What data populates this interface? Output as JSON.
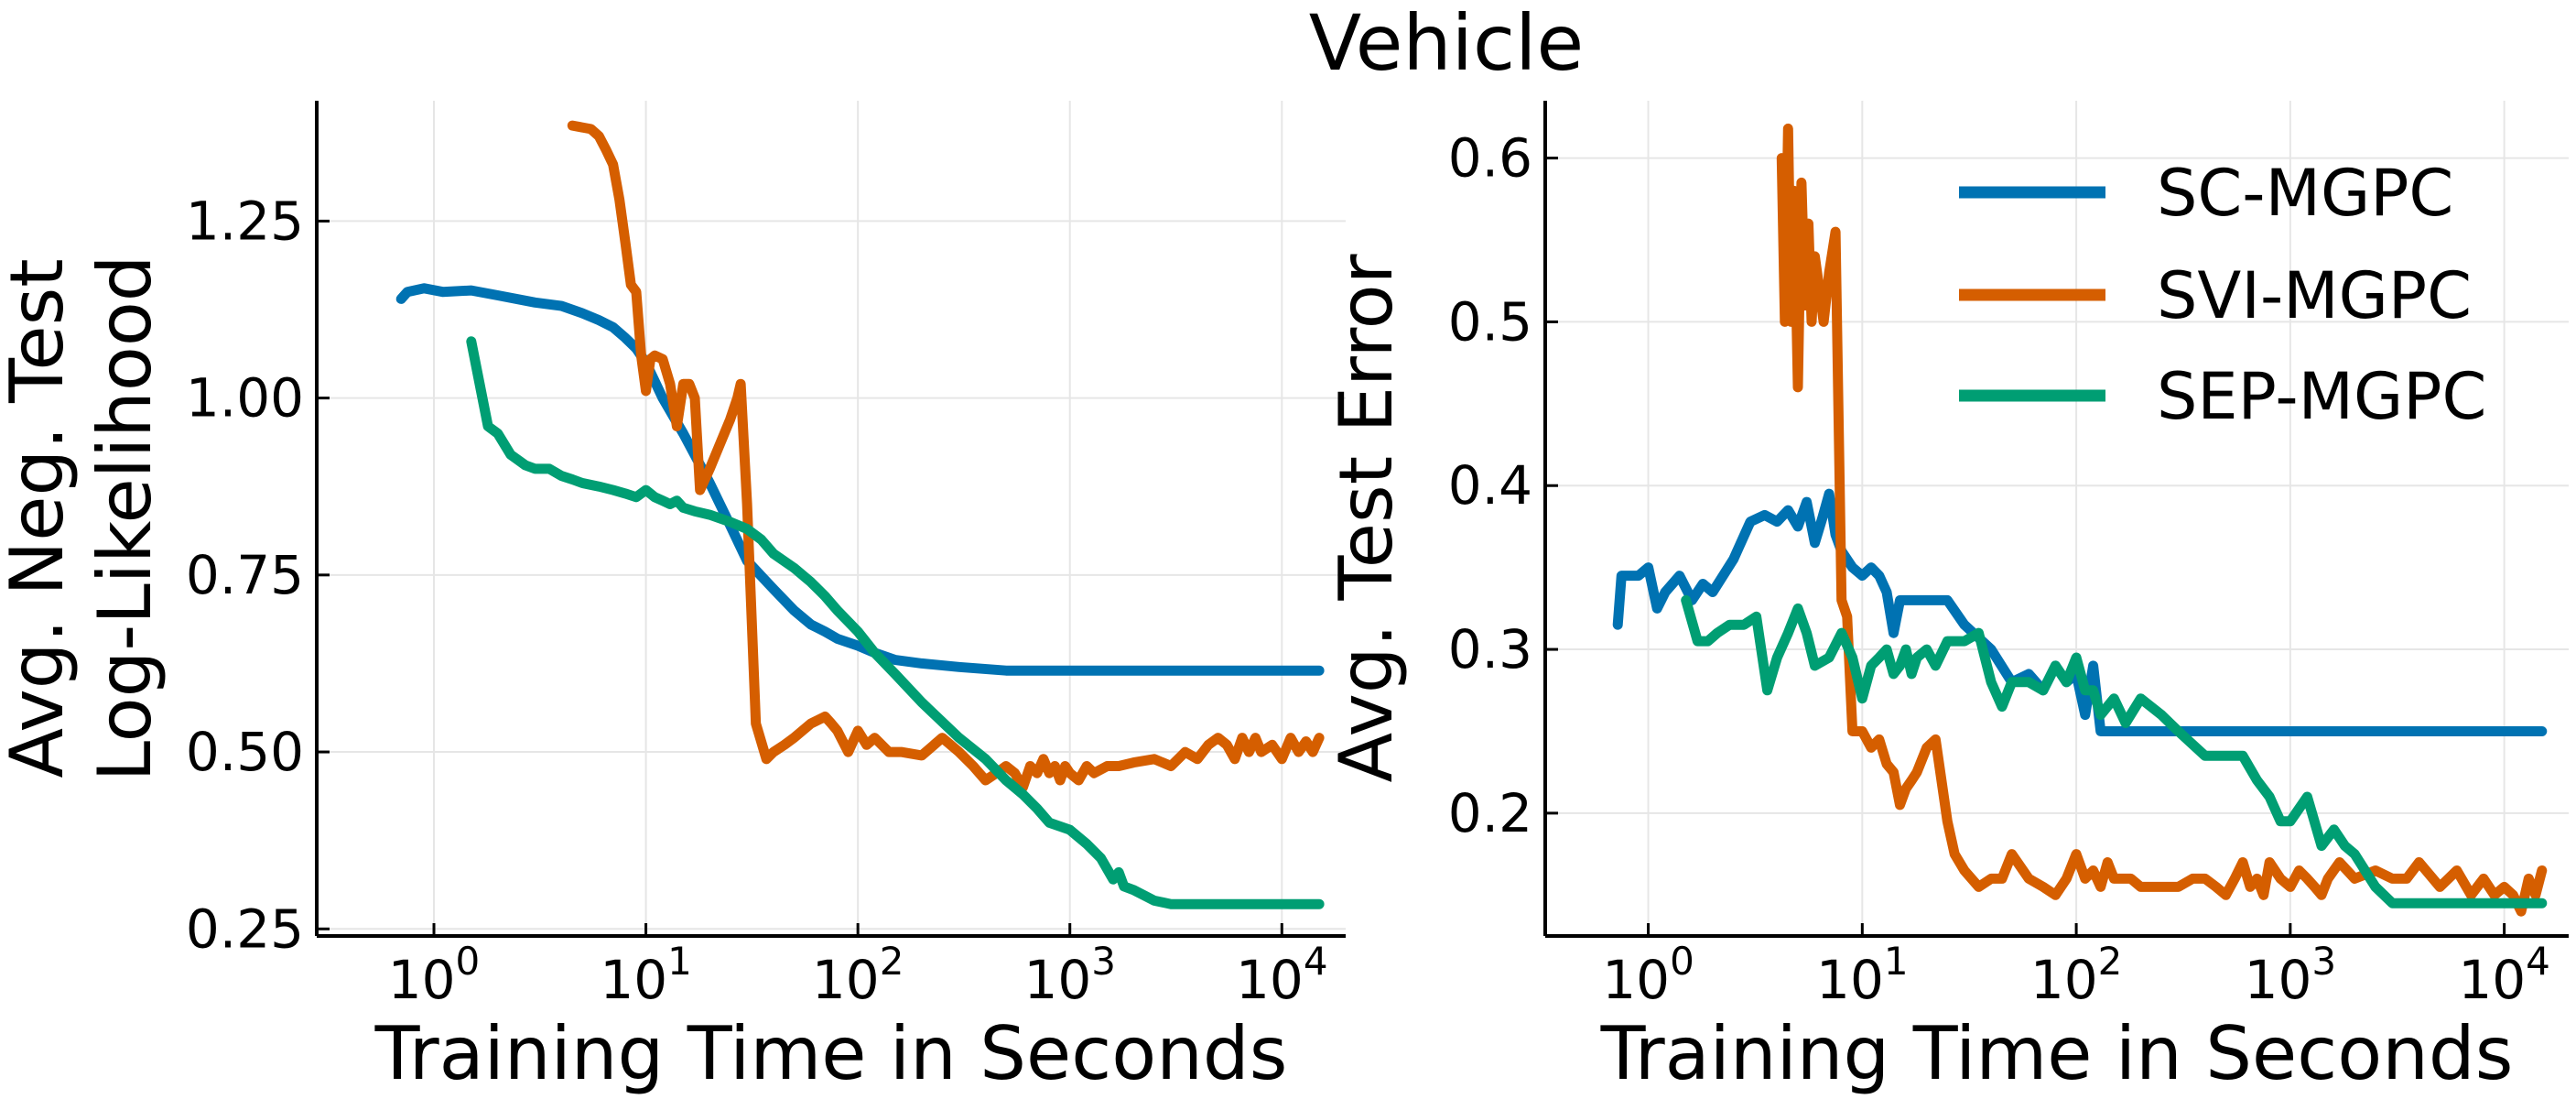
{
  "figure": {
    "title": "Vehicle"
  },
  "legend": {
    "entries": [
      {
        "name": "SC-MGPC",
        "color": "#0072b2"
      },
      {
        "name": "SVI-MGPC",
        "color": "#d55e00"
      },
      {
        "name": "SEP-MGPC",
        "color": "#009e73"
      }
    ]
  },
  "chart_data": [
    {
      "type": "line",
      "title": "",
      "xlabel": "Training Time in Seconds",
      "ylabel_lines": [
        "Avg. Neg. Test",
        "Log-Likelihood"
      ],
      "xscale": "log",
      "xlim": [
        0.28,
        20000
      ],
      "ylim": [
        0.24,
        1.42
      ],
      "xticks": [
        1,
        10,
        100,
        1000,
        10000
      ],
      "xtick_labels": [
        {
          "base": "10",
          "exp": "0"
        },
        {
          "base": "10",
          "exp": "1"
        },
        {
          "base": "10",
          "exp": "2"
        },
        {
          "base": "10",
          "exp": "3"
        },
        {
          "base": "10",
          "exp": "4"
        }
      ],
      "yticks": [
        0.25,
        0.5,
        0.75,
        1.0,
        1.25
      ],
      "ytick_labels": [
        "0.25",
        "0.50",
        "0.75",
        "1.00",
        "1.25"
      ],
      "grid": true,
      "series": [
        {
          "name": "SC-MGPC",
          "color": "#0072b2",
          "x": [
            0.7,
            0.75,
            0.9,
            1.1,
            1.5,
            2,
            3,
            4,
            5,
            6,
            7,
            8,
            9,
            10,
            12,
            15,
            20,
            25,
            30,
            40,
            50,
            60,
            70,
            80,
            100,
            120,
            150,
            200,
            300,
            500,
            1000,
            2000,
            5000,
            10000,
            15000
          ],
          "y": [
            1.14,
            1.15,
            1.155,
            1.15,
            1.152,
            1.145,
            1.135,
            1.13,
            1.12,
            1.11,
            1.1,
            1.085,
            1.07,
            1.05,
            1.0,
            0.95,
            0.88,
            0.82,
            0.77,
            0.73,
            0.7,
            0.68,
            0.67,
            0.66,
            0.65,
            0.64,
            0.63,
            0.625,
            0.62,
            0.615,
            0.615,
            0.615,
            0.615,
            0.615,
            0.615
          ]
        },
        {
          "name": "SVI-MGPC",
          "color": "#d55e00",
          "x": [
            4.5,
            5.5,
            6,
            6.5,
            7,
            7.5,
            8,
            8.5,
            9,
            9.5,
            10,
            10.5,
            11,
            12,
            13,
            14,
            15,
            16,
            17,
            18,
            20,
            22,
            25,
            27,
            28,
            30,
            33,
            37,
            40,
            45,
            50,
            60,
            70,
            75,
            80,
            90,
            100,
            110,
            120,
            140,
            160,
            200,
            250,
            300,
            350,
            400,
            450,
            500,
            550,
            600,
            650,
            700,
            750,
            800,
            850,
            900,
            950,
            1000,
            1100,
            1200,
            1300,
            1500,
            1700,
            2000,
            2500,
            3000,
            3500,
            4000,
            4500,
            5000,
            5500,
            6000,
            6500,
            7000,
            7500,
            8000,
            9000,
            10000,
            11000,
            12000,
            13000,
            14000,
            15000
          ],
          "y": [
            1.385,
            1.38,
            1.37,
            1.35,
            1.33,
            1.28,
            1.22,
            1.16,
            1.15,
            1.06,
            1.01,
            1.055,
            1.06,
            1.055,
            1.02,
            0.96,
            1.02,
            1.02,
            1.0,
            0.87,
            0.9,
            0.93,
            0.97,
            1.0,
            1.02,
            0.85,
            0.54,
            0.49,
            0.5,
            0.51,
            0.52,
            0.54,
            0.55,
            0.54,
            0.53,
            0.5,
            0.53,
            0.51,
            0.52,
            0.5,
            0.5,
            0.495,
            0.52,
            0.5,
            0.48,
            0.46,
            0.47,
            0.48,
            0.47,
            0.45,
            0.48,
            0.47,
            0.49,
            0.47,
            0.48,
            0.46,
            0.48,
            0.47,
            0.46,
            0.48,
            0.47,
            0.48,
            0.48,
            0.485,
            0.49,
            0.48,
            0.5,
            0.49,
            0.51,
            0.52,
            0.51,
            0.49,
            0.52,
            0.5,
            0.52,
            0.5,
            0.51,
            0.49,
            0.52,
            0.5,
            0.515,
            0.5,
            0.52
          ]
        },
        {
          "name": "SEP-MGPC",
          "color": "#009e73",
          "x": [
            1.5,
            1.8,
            2,
            2.3,
            2.7,
            3,
            3.5,
            4,
            4.5,
            5,
            6,
            7,
            8,
            9,
            10,
            11,
            12,
            13,
            14,
            15,
            17,
            20,
            25,
            30,
            35,
            40,
            50,
            60,
            70,
            80,
            100,
            120,
            150,
            200,
            300,
            400,
            500,
            600,
            700,
            800,
            1000,
            1200,
            1400,
            1600,
            1700,
            1800,
            2000,
            2500,
            3000,
            5000,
            10000,
            15000
          ],
          "y": [
            1.08,
            0.96,
            0.95,
            0.92,
            0.905,
            0.9,
            0.9,
            0.89,
            0.885,
            0.88,
            0.875,
            0.87,
            0.865,
            0.86,
            0.87,
            0.86,
            0.855,
            0.85,
            0.855,
            0.845,
            0.84,
            0.835,
            0.825,
            0.815,
            0.8,
            0.78,
            0.76,
            0.74,
            0.72,
            0.7,
            0.67,
            0.64,
            0.61,
            0.57,
            0.52,
            0.49,
            0.46,
            0.44,
            0.42,
            0.4,
            0.39,
            0.37,
            0.35,
            0.32,
            0.33,
            0.31,
            0.305,
            0.29,
            0.285,
            0.285,
            0.285,
            0.285
          ]
        }
      ]
    },
    {
      "type": "line",
      "title": "",
      "xlabel": "Training Time in Seconds",
      "ylabel_lines": [
        "Avg. Test Error"
      ],
      "xscale": "log",
      "xlim": [
        0.33,
        20000
      ],
      "ylim": [
        0.125,
        0.635
      ],
      "xticks": [
        1,
        10,
        100,
        1000,
        10000
      ],
      "xtick_labels": [
        {
          "base": "10",
          "exp": "0"
        },
        {
          "base": "10",
          "exp": "1"
        },
        {
          "base": "10",
          "exp": "2"
        },
        {
          "base": "10",
          "exp": "3"
        },
        {
          "base": "10",
          "exp": "4"
        }
      ],
      "yticks": [
        0.2,
        0.3,
        0.4,
        0.5,
        0.6
      ],
      "ytick_labels": [
        "0.2",
        "0.3",
        "0.4",
        "0.5",
        "0.6"
      ],
      "grid": true,
      "legend_position": "top-right",
      "series": [
        {
          "name": "SC-MGPC",
          "color": "#0072b2",
          "x": [
            0.72,
            0.75,
            0.9,
            1.0,
            1.1,
            1.2,
            1.4,
            1.6,
            1.8,
            2,
            2.5,
            3,
            3.5,
            4,
            4.5,
            5,
            5.5,
            6,
            6.5,
            7,
            7.5,
            8,
            9,
            10,
            11,
            12,
            13,
            14,
            15,
            17,
            20,
            25,
            30,
            40,
            50,
            60,
            70,
            80,
            90,
            100,
            110,
            120,
            130,
            150,
            200,
            300,
            500,
            1000,
            2000,
            5000,
            10000,
            15000
          ],
          "y": [
            0.315,
            0.345,
            0.345,
            0.35,
            0.325,
            0.335,
            0.345,
            0.33,
            0.34,
            0.335,
            0.355,
            0.378,
            0.382,
            0.378,
            0.385,
            0.375,
            0.39,
            0.365,
            0.38,
            0.395,
            0.37,
            0.36,
            0.35,
            0.345,
            0.35,
            0.345,
            0.335,
            0.31,
            0.33,
            0.33,
            0.33,
            0.33,
            0.315,
            0.3,
            0.28,
            0.285,
            0.275,
            0.29,
            0.28,
            0.285,
            0.26,
            0.29,
            0.25,
            0.25,
            0.25,
            0.25,
            0.25,
            0.25,
            0.25,
            0.25,
            0.25,
            0.25
          ]
        },
        {
          "name": "SVI-MGPC",
          "color": "#d55e00",
          "x": [
            4.2,
            4.35,
            4.5,
            4.65,
            4.8,
            5.0,
            5.2,
            5.4,
            5.6,
            5.8,
            6.0,
            6.3,
            6.6,
            7.0,
            7.5,
            8.0,
            8.5,
            9.0,
            9.5,
            10,
            11,
            12,
            13,
            14,
            15,
            16,
            17,
            18,
            20,
            22,
            25,
            27,
            30,
            35,
            40,
            45,
            50,
            60,
            70,
            80,
            90,
            100,
            110,
            120,
            130,
            140,
            150,
            180,
            200,
            250,
            300,
            350,
            400,
            450,
            500,
            550,
            600,
            650,
            700,
            750,
            800,
            900,
            1000,
            1100,
            1200,
            1300,
            1400,
            1500,
            1700,
            2000,
            2500,
            3000,
            3500,
            4000,
            5000,
            6000,
            7000,
            8000,
            9000,
            10000,
            11000,
            12000,
            13000,
            14000,
            15000
          ],
          "y": [
            0.6,
            0.5,
            0.618,
            0.5,
            0.58,
            0.46,
            0.585,
            0.51,
            0.56,
            0.5,
            0.54,
            0.52,
            0.5,
            0.53,
            0.555,
            0.33,
            0.32,
            0.25,
            0.25,
            0.25,
            0.24,
            0.245,
            0.23,
            0.225,
            0.205,
            0.215,
            0.22,
            0.225,
            0.24,
            0.245,
            0.195,
            0.175,
            0.165,
            0.155,
            0.16,
            0.16,
            0.175,
            0.16,
            0.155,
            0.15,
            0.16,
            0.175,
            0.16,
            0.165,
            0.155,
            0.17,
            0.16,
            0.16,
            0.155,
            0.155,
            0.155,
            0.16,
            0.16,
            0.155,
            0.15,
            0.16,
            0.17,
            0.155,
            0.16,
            0.15,
            0.17,
            0.16,
            0.155,
            0.165,
            0.16,
            0.155,
            0.15,
            0.16,
            0.17,
            0.16,
            0.165,
            0.16,
            0.16,
            0.17,
            0.155,
            0.165,
            0.15,
            0.16,
            0.15,
            0.155,
            0.15,
            0.14,
            0.16,
            0.15,
            0.165
          ]
        },
        {
          "name": "SEP-MGPC",
          "color": "#009e73",
          "x": [
            1.5,
            1.7,
            1.9,
            2.1,
            2.4,
            2.8,
            3.2,
            3.6,
            4.0,
            4.5,
            5.0,
            5.5,
            6.0,
            7.0,
            8.0,
            9.0,
            10,
            11,
            12,
            13,
            14,
            15,
            16,
            17,
            18,
            20,
            22,
            25,
            30,
            35,
            40,
            45,
            50,
            60,
            70,
            80,
            90,
            100,
            110,
            120,
            130,
            150,
            170,
            200,
            250,
            300,
            400,
            500,
            600,
            700,
            800,
            900,
            1000,
            1200,
            1400,
            1600,
            1800,
            2000,
            2500,
            3000,
            5000,
            10000,
            15000
          ],
          "y": [
            0.33,
            0.305,
            0.305,
            0.31,
            0.315,
            0.315,
            0.32,
            0.275,
            0.295,
            0.31,
            0.325,
            0.31,
            0.29,
            0.295,
            0.31,
            0.295,
            0.27,
            0.29,
            0.295,
            0.3,
            0.285,
            0.29,
            0.3,
            0.285,
            0.295,
            0.3,
            0.29,
            0.305,
            0.305,
            0.31,
            0.28,
            0.265,
            0.28,
            0.28,
            0.275,
            0.29,
            0.28,
            0.295,
            0.275,
            0.275,
            0.26,
            0.27,
            0.255,
            0.27,
            0.26,
            0.25,
            0.235,
            0.235,
            0.235,
            0.22,
            0.21,
            0.195,
            0.195,
            0.21,
            0.18,
            0.19,
            0.18,
            0.175,
            0.155,
            0.145,
            0.145,
            0.145,
            0.145
          ]
        }
      ]
    }
  ]
}
